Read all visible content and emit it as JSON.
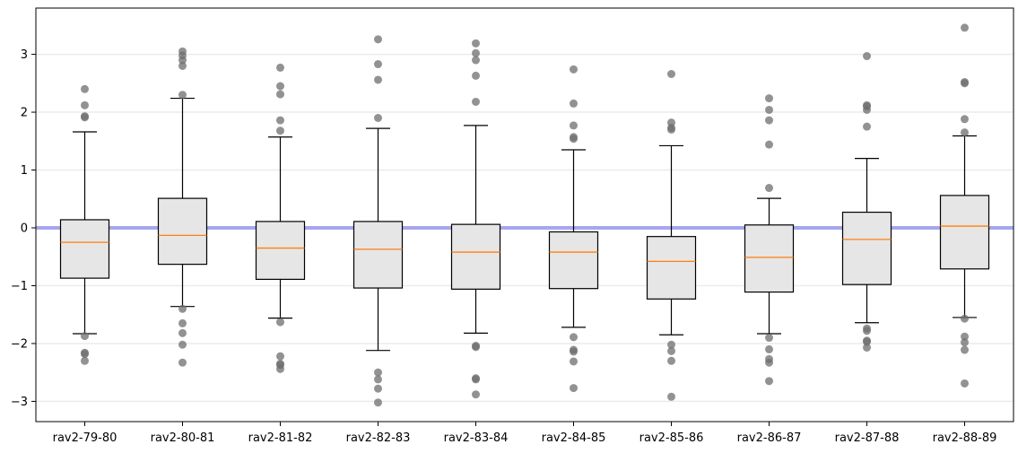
{
  "chart_data": {
    "type": "boxplot",
    "title": "",
    "xlabel": "",
    "ylabel": "",
    "ylim": [
      -3.35,
      3.8
    ],
    "yticks": [
      -3,
      -2,
      -1,
      0,
      1,
      2,
      3
    ],
    "ytick_labels": [
      "−3",
      "−2",
      "−1",
      "0",
      "1",
      "2",
      "3"
    ],
    "grid": "horizontal",
    "reference_line": {
      "y": 0,
      "color": "#a6a6ee"
    },
    "box_color": "#e6e6e6",
    "median_color": "#ff7f0e",
    "outlier_color": "#6e6e6e",
    "categories": [
      "rav2-79-80",
      "rav2-80-81",
      "rav2-81-82",
      "rav2-82-83",
      "rav2-83-84",
      "rav2-84-85",
      "rav2-85-86",
      "rav2-86-87",
      "rav2-87-88",
      "rav2-88-89"
    ],
    "boxes": [
      {
        "whisker_low": -1.83,
        "q1": -0.87,
        "median": -0.25,
        "q3": 0.14,
        "whisker_high": 1.66,
        "outliers": [
          2.4,
          2.12,
          1.93,
          1.91,
          -1.87,
          -2.16,
          -2.18,
          -2.3
        ]
      },
      {
        "whisker_low": -1.36,
        "q1": -0.63,
        "median": -0.13,
        "q3": 0.51,
        "whisker_high": 2.24,
        "outliers": [
          3.05,
          2.98,
          2.9,
          2.8,
          2.3,
          -1.4,
          -1.65,
          -1.82,
          -2.02,
          -2.33
        ]
      },
      {
        "whisker_low": -1.56,
        "q1": -0.89,
        "median": -0.35,
        "q3": 0.11,
        "whisker_high": 1.57,
        "outliers": [
          2.77,
          2.45,
          2.31,
          1.86,
          1.68,
          -1.63,
          -2.22,
          -2.35,
          -2.37,
          -2.44
        ]
      },
      {
        "whisker_low": -2.12,
        "q1": -1.04,
        "median": -0.37,
        "q3": 0.11,
        "whisker_high": 1.72,
        "outliers": [
          3.26,
          2.83,
          2.56,
          1.9,
          -2.5,
          -2.62,
          -2.78,
          -3.02
        ]
      },
      {
        "whisker_low": -1.82,
        "q1": -1.06,
        "median": -0.42,
        "q3": 0.06,
        "whisker_high": 1.77,
        "outliers": [
          3.19,
          3.02,
          2.9,
          2.63,
          2.18,
          -2.04,
          -2.06,
          -2.6,
          -2.62,
          -2.88
        ]
      },
      {
        "whisker_low": -1.72,
        "q1": -1.05,
        "median": -0.42,
        "q3": -0.07,
        "whisker_high": 1.35,
        "outliers": [
          2.74,
          2.15,
          1.77,
          1.57,
          1.54,
          -1.89,
          -2.11,
          -2.14,
          -2.31,
          -2.77
        ]
      },
      {
        "whisker_low": -1.85,
        "q1": -1.23,
        "median": -0.58,
        "q3": -0.15,
        "whisker_high": 1.42,
        "outliers": [
          2.66,
          1.82,
          1.73,
          1.7,
          -2.02,
          -2.13,
          -2.3,
          -2.92
        ]
      },
      {
        "whisker_low": -1.83,
        "q1": -1.11,
        "median": -0.51,
        "q3": 0.05,
        "whisker_high": 0.51,
        "outliers": [
          2.24,
          2.04,
          1.86,
          1.44,
          0.69,
          -1.9,
          -2.1,
          -2.27,
          -2.33,
          -2.65
        ]
      },
      {
        "whisker_low": -1.64,
        "q1": -0.98,
        "median": -0.2,
        "q3": 0.27,
        "whisker_high": 1.2,
        "outliers": [
          2.97,
          2.12,
          2.1,
          2.04,
          1.75,
          -1.74,
          -1.78,
          -1.95,
          -1.97,
          -2.07
        ]
      },
      {
        "whisker_low": -1.55,
        "q1": -0.71,
        "median": 0.03,
        "q3": 0.56,
        "whisker_high": 1.59,
        "outliers": [
          3.46,
          2.52,
          2.5,
          1.88,
          1.65,
          -1.57,
          -1.88,
          -1.98,
          -2.11,
          -2.69
        ]
      }
    ]
  }
}
